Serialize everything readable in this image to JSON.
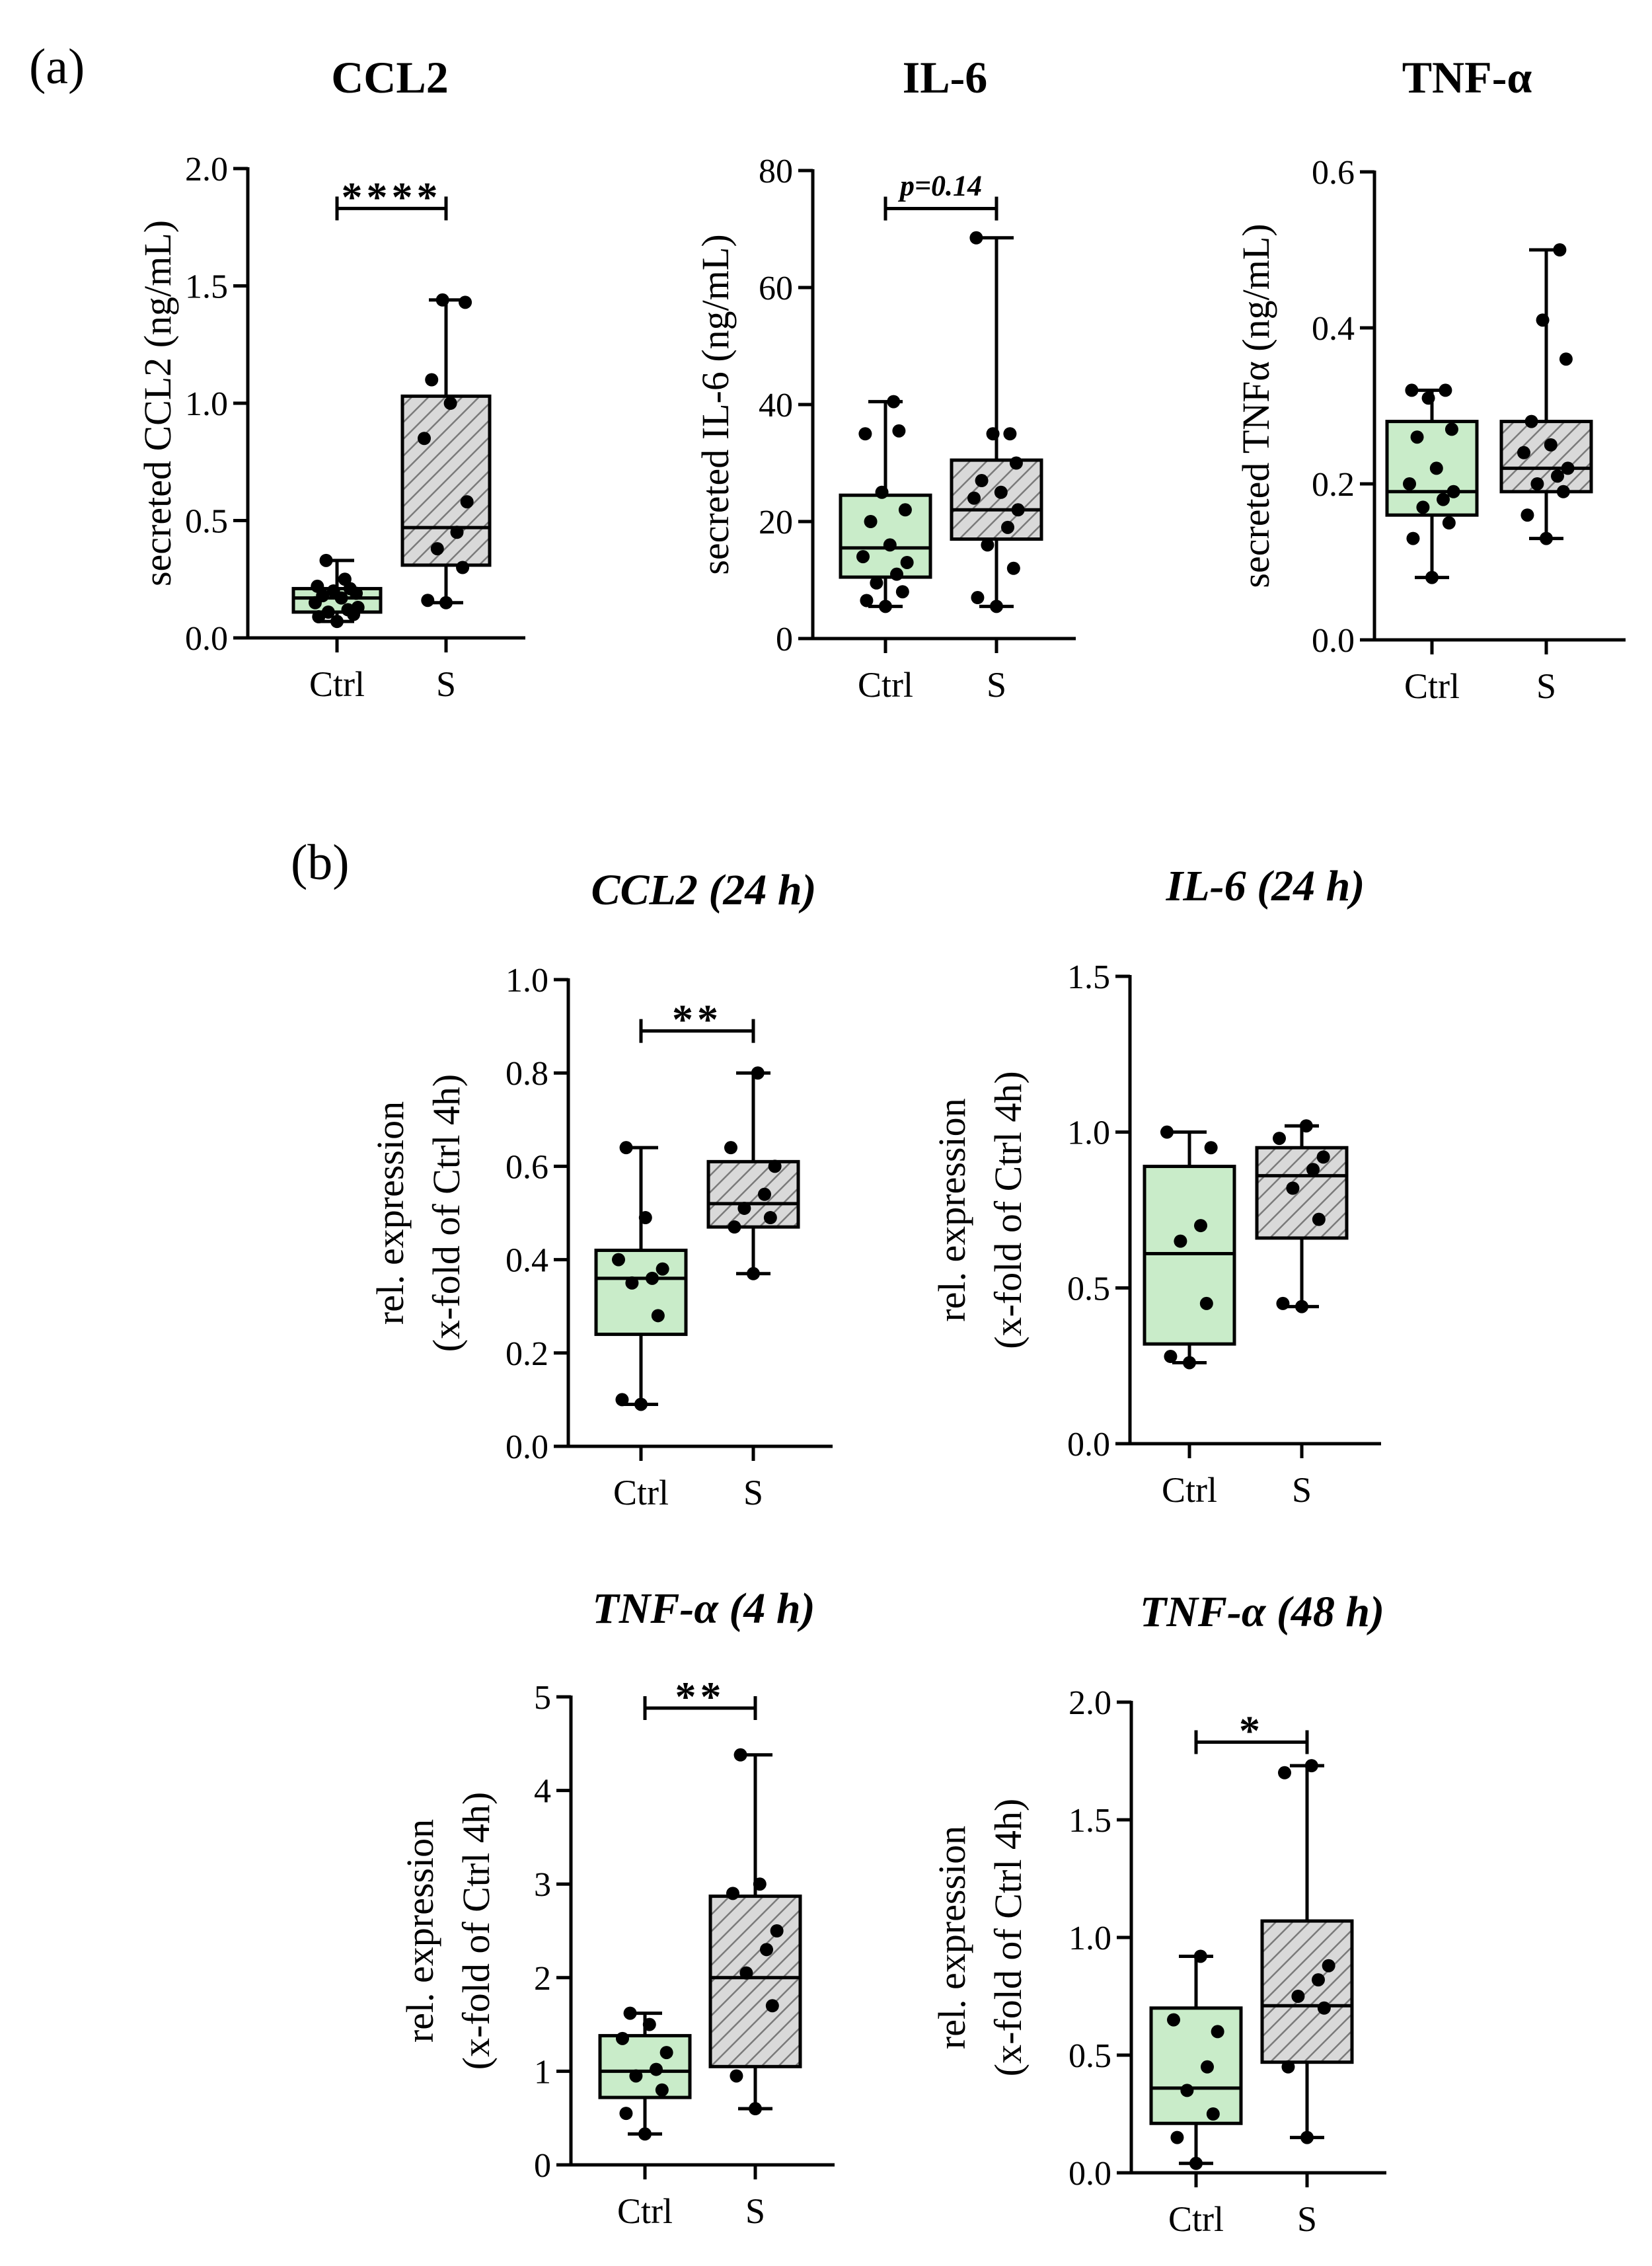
{
  "panel_labels": {
    "a": "(a)",
    "b": "(b)"
  },
  "colors": {
    "ctrl_fill": "#c9ecc9",
    "s_fill": "#d9d9d9",
    "hatch": "#7a7a7a",
    "line": "#000000",
    "dot": "#000000"
  },
  "chart_data": [
    {
      "id": "a1",
      "type": "box",
      "title": "CCL2",
      "title_style": "bold",
      "xlabel": "",
      "ylabel": "secreted CCL2 (ng/mL)",
      "ylim": [
        0,
        2.0
      ],
      "yticks": [
        0.0,
        0.5,
        1.0,
        1.5,
        2.0
      ],
      "ytick_labels": [
        "0.0",
        "0.5",
        "1.0",
        "1.5",
        "2.0"
      ],
      "categories": [
        "Ctrl",
        "S"
      ],
      "groups": [
        {
          "name": "Ctrl",
          "style": "ctrl",
          "min": 0.07,
          "q1": 0.11,
          "median": 0.17,
          "q3": 0.21,
          "max": 0.33,
          "points": [
            0.07,
            0.09,
            0.1,
            0.11,
            0.12,
            0.13,
            0.15,
            0.17,
            0.18,
            0.19,
            0.2,
            0.21,
            0.22,
            0.25,
            0.33
          ]
        },
        {
          "name": "S",
          "style": "s",
          "min": 0.15,
          "q1": 0.31,
          "median": 0.47,
          "q3": 1.03,
          "max": 1.44,
          "points": [
            0.15,
            0.16,
            0.3,
            0.38,
            0.45,
            0.58,
            0.85,
            1.0,
            1.1,
            1.43,
            1.44
          ]
        }
      ],
      "significance": {
        "label": "****",
        "style": "normal",
        "y": 1.83
      }
    },
    {
      "id": "a2",
      "type": "box",
      "title": "IL-6",
      "title_style": "bold",
      "xlabel": "",
      "ylabel": "secreted IL-6 (ng/mL)",
      "ylim": [
        0,
        80
      ],
      "yticks": [
        0,
        20,
        40,
        60,
        80
      ],
      "ytick_labels": [
        "0",
        "20",
        "40",
        "60",
        "80"
      ],
      "categories": [
        "Ctrl",
        "S"
      ],
      "groups": [
        {
          "name": "Ctrl",
          "style": "ctrl",
          "min": 5.5,
          "q1": 10.5,
          "median": 15.5,
          "q3": 24.5,
          "max": 40.5,
          "points": [
            5.5,
            6.5,
            8,
            9.5,
            11,
            13,
            14,
            16,
            20,
            22,
            25,
            35.5,
            35,
            40.5
          ]
        },
        {
          "name": "S",
          "style": "s",
          "min": 5.5,
          "q1": 17,
          "median": 22,
          "q3": 30.5,
          "max": 68.5,
          "points": [
            5.5,
            7,
            12,
            16,
            19,
            22,
            24,
            25,
            27,
            30,
            35,
            35,
            68.5
          ]
        }
      ],
      "significance": {
        "label": "p=0.14",
        "style": "italic-bold-small",
        "y": 73.5
      }
    },
    {
      "id": "a3",
      "type": "box",
      "title": "TNF-α",
      "title_style": "bold",
      "xlabel": "",
      "ylabel": "secreted TNFα (ng/mL)",
      "ylim": [
        0,
        0.6
      ],
      "yticks": [
        0.0,
        0.2,
        0.4,
        0.6
      ],
      "ytick_labels": [
        "0.0",
        "0.2",
        "0.4",
        "0.6"
      ],
      "categories": [
        "Ctrl",
        "S"
      ],
      "groups": [
        {
          "name": "Ctrl",
          "style": "ctrl",
          "min": 0.08,
          "q1": 0.16,
          "median": 0.19,
          "q3": 0.28,
          "max": 0.32,
          "points": [
            0.08,
            0.13,
            0.15,
            0.17,
            0.18,
            0.19,
            0.2,
            0.22,
            0.26,
            0.27,
            0.31,
            0.32,
            0.32
          ]
        },
        {
          "name": "S",
          "style": "s",
          "min": 0.13,
          "q1": 0.19,
          "median": 0.22,
          "q3": 0.28,
          "max": 0.5,
          "points": [
            0.13,
            0.16,
            0.19,
            0.2,
            0.21,
            0.22,
            0.24,
            0.25,
            0.28,
            0.36,
            0.41,
            0.5
          ]
        }
      ],
      "significance": null
    },
    {
      "id": "b1",
      "type": "box",
      "title": "CCL2 (24 h)",
      "title_style": "bold-italic",
      "xlabel": "",
      "ylabel": "rel. expression",
      "ylabel2": "(x-fold of Ctrl 4h)",
      "ylim": [
        0,
        1.0
      ],
      "yticks": [
        0.0,
        0.2,
        0.4,
        0.6,
        0.8,
        1.0
      ],
      "ytick_labels": [
        "0.0",
        "0.2",
        "0.4",
        "0.6",
        "0.8",
        "1.0"
      ],
      "categories": [
        "Ctrl",
        "S"
      ],
      "groups": [
        {
          "name": "Ctrl",
          "style": "ctrl",
          "min": 0.09,
          "q1": 0.24,
          "median": 0.36,
          "q3": 0.42,
          "max": 0.64,
          "points": [
            0.09,
            0.1,
            0.28,
            0.35,
            0.36,
            0.38,
            0.4,
            0.49,
            0.64
          ]
        },
        {
          "name": "S",
          "style": "s",
          "min": 0.37,
          "q1": 0.47,
          "median": 0.52,
          "q3": 0.61,
          "max": 0.8,
          "points": [
            0.37,
            0.47,
            0.49,
            0.51,
            0.54,
            0.6,
            0.64,
            0.8
          ]
        }
      ],
      "significance": {
        "label": "**",
        "style": "normal",
        "y": 0.89
      }
    },
    {
      "id": "b2",
      "type": "box",
      "title": "IL-6 (24 h)",
      "title_style": "bold-italic",
      "xlabel": "",
      "ylabel": "rel. expression",
      "ylabel2": "(x-fold of Ctrl 4h)",
      "ylim": [
        0,
        1.5
      ],
      "yticks": [
        0.0,
        0.5,
        1.0,
        1.5
      ],
      "ytick_labels": [
        "0.0",
        "0.5",
        "1.0",
        "1.5"
      ],
      "categories": [
        "Ctrl",
        "S"
      ],
      "groups": [
        {
          "name": "Ctrl",
          "style": "ctrl",
          "min": 0.26,
          "q1": 0.32,
          "median": 0.61,
          "q3": 0.89,
          "max": 1.0,
          "points": [
            0.26,
            0.28,
            0.45,
            0.65,
            0.7,
            0.95,
            1.0
          ]
        },
        {
          "name": "S",
          "style": "s",
          "min": 0.44,
          "q1": 0.66,
          "median": 0.86,
          "q3": 0.95,
          "max": 1.02,
          "points": [
            0.44,
            0.45,
            0.72,
            0.82,
            0.88,
            0.92,
            0.98,
            1.02
          ]
        }
      ],
      "significance": null
    },
    {
      "id": "b3",
      "type": "box",
      "title": "TNF-α (4 h)",
      "title_style": "bold-italic",
      "xlabel": "",
      "ylabel": "rel. expression",
      "ylabel2": "(x-fold of Ctrl 4h)",
      "ylim": [
        0,
        5
      ],
      "yticks": [
        0,
        1,
        2,
        3,
        4,
        5
      ],
      "ytick_labels": [
        "0",
        "1",
        "2",
        "3",
        "4",
        "5"
      ],
      "categories": [
        "Ctrl",
        "S"
      ],
      "groups": [
        {
          "name": "Ctrl",
          "style": "ctrl",
          "min": 0.33,
          "q1": 0.72,
          "median": 1.0,
          "q3": 1.38,
          "max": 1.62,
          "points": [
            0.33,
            0.55,
            0.8,
            0.95,
            1.02,
            1.2,
            1.35,
            1.5,
            1.62
          ]
        },
        {
          "name": "S",
          "style": "s",
          "min": 0.6,
          "q1": 1.05,
          "median": 2.0,
          "q3": 2.87,
          "max": 4.38,
          "points": [
            0.6,
            0.95,
            1.7,
            2.05,
            2.3,
            2.5,
            2.9,
            3.0,
            4.38
          ]
        }
      ],
      "significance": {
        "label": "**",
        "style": "normal",
        "y": 4.88
      }
    },
    {
      "id": "b4",
      "type": "box",
      "title": "TNF-α (48 h)",
      "title_style": "bold-italic",
      "xlabel": "",
      "ylabel": "rel. expression",
      "ylabel2": "(x-fold of Ctrl 4h)",
      "ylim": [
        0,
        2.0
      ],
      "yticks": [
        0.0,
        0.5,
        1.0,
        1.5,
        2.0
      ],
      "ytick_labels": [
        "0.0",
        "0.5",
        "1.0",
        "1.5",
        "2.0"
      ],
      "categories": [
        "Ctrl",
        "S"
      ],
      "groups": [
        {
          "name": "Ctrl",
          "style": "ctrl",
          "min": 0.04,
          "q1": 0.21,
          "median": 0.36,
          "q3": 0.7,
          "max": 0.92,
          "points": [
            0.04,
            0.15,
            0.25,
            0.35,
            0.45,
            0.6,
            0.65,
            0.92
          ]
        },
        {
          "name": "S",
          "style": "s",
          "min": 0.15,
          "q1": 0.47,
          "median": 0.71,
          "q3": 1.07,
          "max": 1.73,
          "points": [
            0.15,
            0.45,
            0.7,
            0.75,
            0.82,
            0.88,
            1.7,
            1.73
          ]
        }
      ],
      "significance": {
        "label": "*",
        "style": "normal",
        "y": 1.83
      }
    }
  ]
}
